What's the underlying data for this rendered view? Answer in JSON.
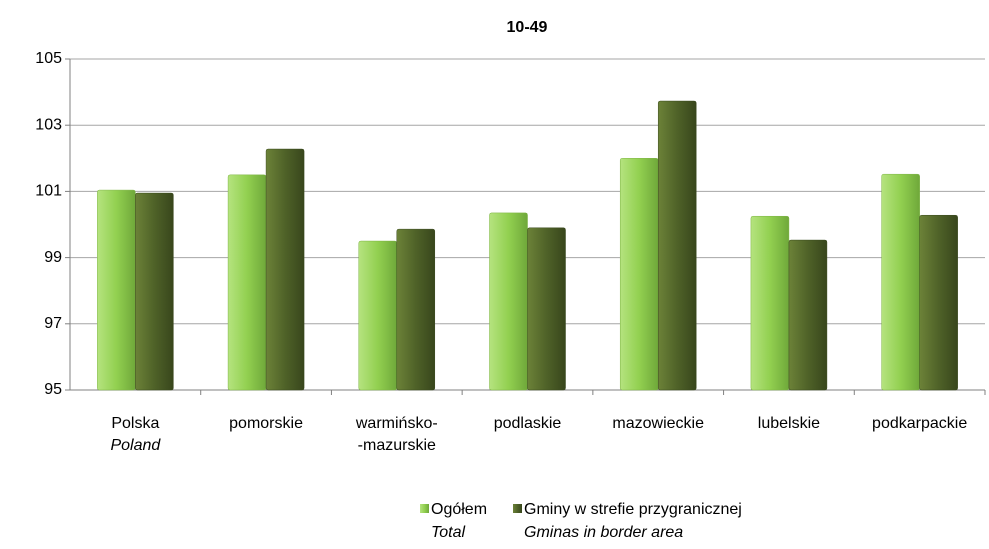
{
  "chart_data": {
    "type": "bar",
    "title": "10-49",
    "categories": [
      "Polska",
      "pomorskie",
      "warmińsko-\n-mazurskie",
      "podlaskie",
      "mazowieckie",
      "lubelskie",
      "podkarpackie"
    ],
    "categories_en": [
      "Poland",
      null,
      null,
      null,
      null,
      null,
      null
    ],
    "series": [
      {
        "name": "Ogółem",
        "name_en": "Total",
        "color": "#92d050",
        "values": [
          101.04,
          101.5,
          99.5,
          100.35,
          102.0,
          100.25,
          101.52
        ]
      },
      {
        "name": "Gminy w strefie przygranicznej",
        "name_en": "Gminas in border area",
        "color": "#4f6228",
        "values": [
          100.95,
          102.28,
          99.86,
          99.9,
          103.73,
          99.53,
          100.28
        ]
      }
    ],
    "ylim": [
      95,
      105
    ],
    "yticks": [
      95,
      97,
      99,
      101,
      103,
      105
    ],
    "grid": true,
    "legend": "bottom"
  }
}
